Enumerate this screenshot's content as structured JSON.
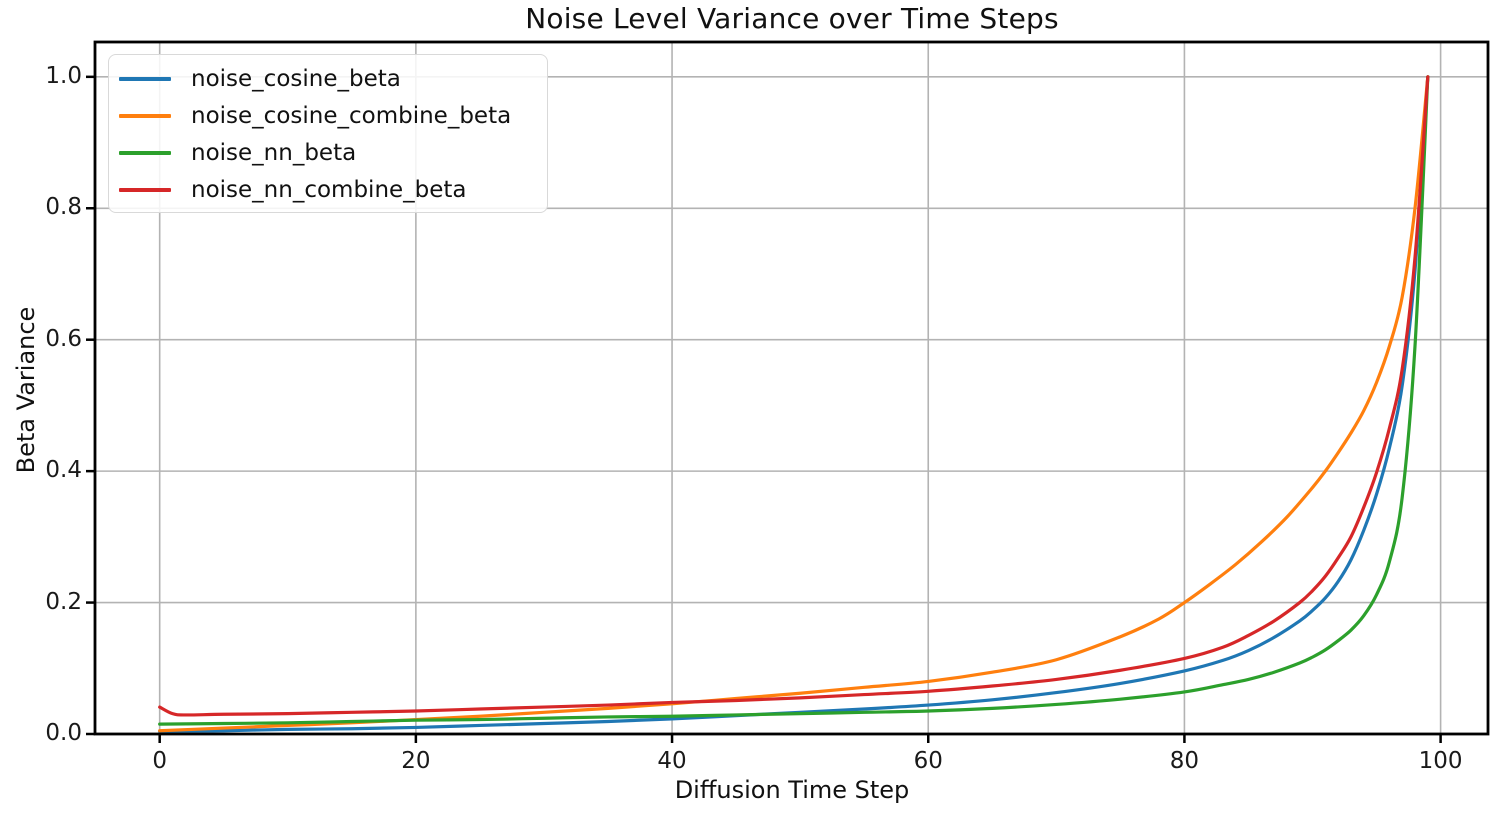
{
  "chart_data": {
    "type": "line",
    "title": "Noise Level Variance over Time Steps",
    "xlabel": "Diffusion Time Step",
    "ylabel": "Beta Variance",
    "xlim": [
      -5.05,
      103.7
    ],
    "ylim": [
      0,
      1.053
    ],
    "xticks": [
      0,
      20,
      40,
      60,
      80,
      100
    ],
    "xtick_labels": [
      "0",
      "20",
      "40",
      "60",
      "80",
      "100"
    ],
    "yticks": [
      0,
      0.2,
      0.4,
      0.6,
      0.8,
      1.0
    ],
    "ytick_labels": [
      "0.0",
      "0.2",
      "0.4",
      "0.6",
      "0.8",
      "1.0"
    ],
    "grid": true,
    "grid_color": "#b3b3b3",
    "spine_color": "#000000",
    "legend_position": "upper-left",
    "series": [
      {
        "name": "noise_cosine_beta",
        "color": "#1f77b4",
        "points": [
          [
            0,
            0.004
          ],
          [
            5,
            0.005
          ],
          [
            10,
            0.007
          ],
          [
            15,
            0.008
          ],
          [
            20,
            0.01
          ],
          [
            25,
            0.013
          ],
          [
            30,
            0.016
          ],
          [
            35,
            0.019
          ],
          [
            40,
            0.023
          ],
          [
            45,
            0.028
          ],
          [
            50,
            0.033
          ],
          [
            55,
            0.038
          ],
          [
            60,
            0.044
          ],
          [
            65,
            0.052
          ],
          [
            70,
            0.063
          ],
          [
            75,
            0.077
          ],
          [
            80,
            0.096
          ],
          [
            83,
            0.112
          ],
          [
            85,
            0.127
          ],
          [
            87,
            0.147
          ],
          [
            89,
            0.172
          ],
          [
            90,
            0.188
          ],
          [
            91,
            0.207
          ],
          [
            92,
            0.232
          ],
          [
            93,
            0.265
          ],
          [
            94,
            0.31
          ],
          [
            95,
            0.365
          ],
          [
            96,
            0.435
          ],
          [
            97,
            0.53
          ],
          [
            98,
            0.705
          ],
          [
            99,
            1.0
          ]
        ]
      },
      {
        "name": "noise_cosine_combine_beta",
        "color": "#ff7f0e",
        "points": [
          [
            0,
            0.005
          ],
          [
            5,
            0.009
          ],
          [
            10,
            0.013
          ],
          [
            15,
            0.017
          ],
          [
            20,
            0.022
          ],
          [
            25,
            0.027
          ],
          [
            30,
            0.033
          ],
          [
            35,
            0.039
          ],
          [
            40,
            0.046
          ],
          [
            45,
            0.054
          ],
          [
            50,
            0.062
          ],
          [
            55,
            0.071
          ],
          [
            60,
            0.08
          ],
          [
            65,
            0.094
          ],
          [
            70,
            0.113
          ],
          [
            75,
            0.148
          ],
          [
            78,
            0.175
          ],
          [
            80,
            0.2
          ],
          [
            82,
            0.228
          ],
          [
            84,
            0.258
          ],
          [
            86,
            0.292
          ],
          [
            88,
            0.33
          ],
          [
            90,
            0.375
          ],
          [
            91,
            0.4
          ],
          [
            92,
            0.428
          ],
          [
            93,
            0.458
          ],
          [
            94,
            0.492
          ],
          [
            95,
            0.535
          ],
          [
            96,
            0.59
          ],
          [
            97,
            0.665
          ],
          [
            98,
            0.8
          ],
          [
            99,
            1.0
          ]
        ]
      },
      {
        "name": "noise_nn_beta",
        "color": "#2ca02c",
        "points": [
          [
            0,
            0.015
          ],
          [
            5,
            0.016
          ],
          [
            10,
            0.017
          ],
          [
            15,
            0.019
          ],
          [
            20,
            0.021
          ],
          [
            25,
            0.022
          ],
          [
            30,
            0.024
          ],
          [
            35,
            0.026
          ],
          [
            40,
            0.027
          ],
          [
            45,
            0.029
          ],
          [
            50,
            0.031
          ],
          [
            55,
            0.033
          ],
          [
            60,
            0.035
          ],
          [
            65,
            0.039
          ],
          [
            70,
            0.045
          ],
          [
            75,
            0.053
          ],
          [
            80,
            0.064
          ],
          [
            83,
            0.075
          ],
          [
            85,
            0.083
          ],
          [
            87,
            0.094
          ],
          [
            89,
            0.108
          ],
          [
            90,
            0.117
          ],
          [
            91,
            0.128
          ],
          [
            92,
            0.142
          ],
          [
            93,
            0.158
          ],
          [
            94,
            0.18
          ],
          [
            95,
            0.212
          ],
          [
            96,
            0.262
          ],
          [
            97,
            0.36
          ],
          [
            98,
            0.59
          ],
          [
            99,
            1.0
          ]
        ]
      },
      {
        "name": "noise_nn_combine_beta",
        "color": "#d62728",
        "points": [
          [
            0,
            0.041
          ],
          [
            1,
            0.031
          ],
          [
            2,
            0.029
          ],
          [
            5,
            0.03
          ],
          [
            10,
            0.031
          ],
          [
            15,
            0.033
          ],
          [
            20,
            0.035
          ],
          [
            25,
            0.038
          ],
          [
            30,
            0.041
          ],
          [
            35,
            0.044
          ],
          [
            40,
            0.048
          ],
          [
            45,
            0.051
          ],
          [
            50,
            0.055
          ],
          [
            55,
            0.06
          ],
          [
            60,
            0.065
          ],
          [
            65,
            0.073
          ],
          [
            70,
            0.083
          ],
          [
            75,
            0.097
          ],
          [
            80,
            0.115
          ],
          [
            83,
            0.132
          ],
          [
            85,
            0.15
          ],
          [
            87,
            0.172
          ],
          [
            89,
            0.2
          ],
          [
            90,
            0.218
          ],
          [
            91,
            0.24
          ],
          [
            92,
            0.268
          ],
          [
            93,
            0.3
          ],
          [
            94,
            0.345
          ],
          [
            95,
            0.398
          ],
          [
            96,
            0.465
          ],
          [
            97,
            0.555
          ],
          [
            98,
            0.725
          ],
          [
            99,
            1.0
          ]
        ]
      }
    ]
  }
}
